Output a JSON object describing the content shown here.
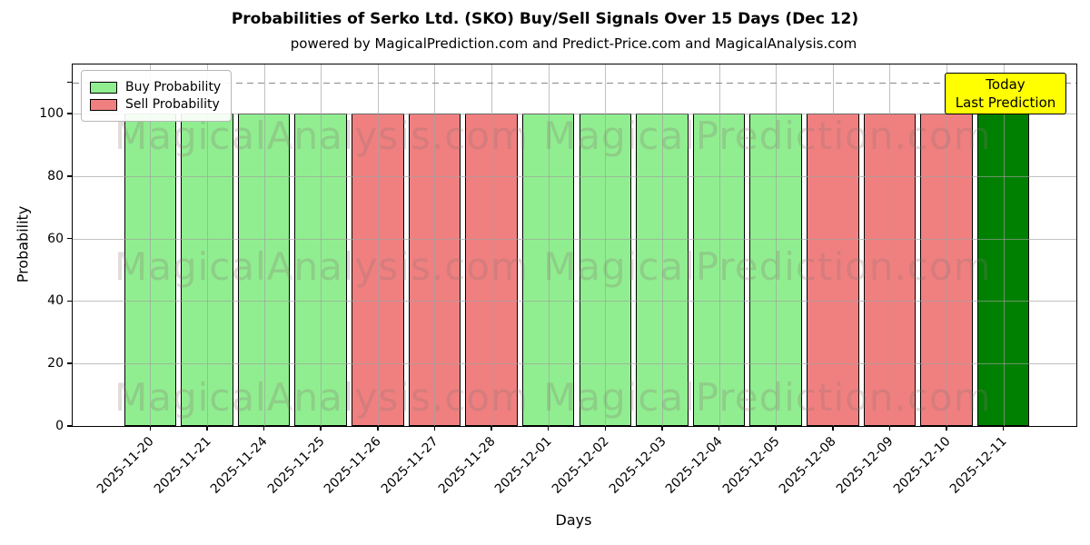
{
  "chart_data": {
    "type": "bar",
    "title": "Probabilities of Serko Ltd. (SKO) Buy/Sell Signals Over 15 Days (Dec 12)",
    "subtitle": "powered by MagicalPrediction.com and Predict-Price.com and MagicalAnalysis.com",
    "xlabel": "Days",
    "ylabel": "Probability",
    "categories": [
      "2025-11-20",
      "2025-11-21",
      "2025-11-24",
      "2025-11-25",
      "2025-11-26",
      "2025-11-27",
      "2025-11-28",
      "2025-12-01",
      "2025-12-02",
      "2025-12-03",
      "2025-12-04",
      "2025-12-05",
      "2025-12-08",
      "2025-12-09",
      "2025-12-10",
      "2025-12-11"
    ],
    "values": [
      100,
      100,
      100,
      100,
      100,
      100,
      100,
      100,
      100,
      100,
      100,
      100,
      100,
      100,
      100,
      100
    ],
    "signals": [
      "buy",
      "buy",
      "buy",
      "buy",
      "sell",
      "sell",
      "sell",
      "buy",
      "buy",
      "buy",
      "buy",
      "buy",
      "sell",
      "sell",
      "sell",
      "today"
    ],
    "ylim": [
      0,
      116
    ],
    "yticks": [
      0,
      20,
      40,
      60,
      80,
      100
    ],
    "unlabeled_ytick": 110,
    "dashed_line_y": 110,
    "grid": true,
    "legend": {
      "position": "upper-left",
      "entries": [
        {
          "label": "Buy Probability",
          "color": "#90EE90"
        },
        {
          "label": "Sell Probability",
          "color": "#F08080"
        }
      ]
    },
    "colors": {
      "buy": "#90EE90",
      "sell": "#F08080",
      "today": "#008000",
      "bar_edge": "#000000",
      "annotation_bg": "#FFFF00"
    },
    "annotation": {
      "line1": "Today",
      "line2": "Last Prediction"
    },
    "watermarks": {
      "left": "MagicalAnalysis.com",
      "right": "MagicalPrediction.com"
    }
  }
}
